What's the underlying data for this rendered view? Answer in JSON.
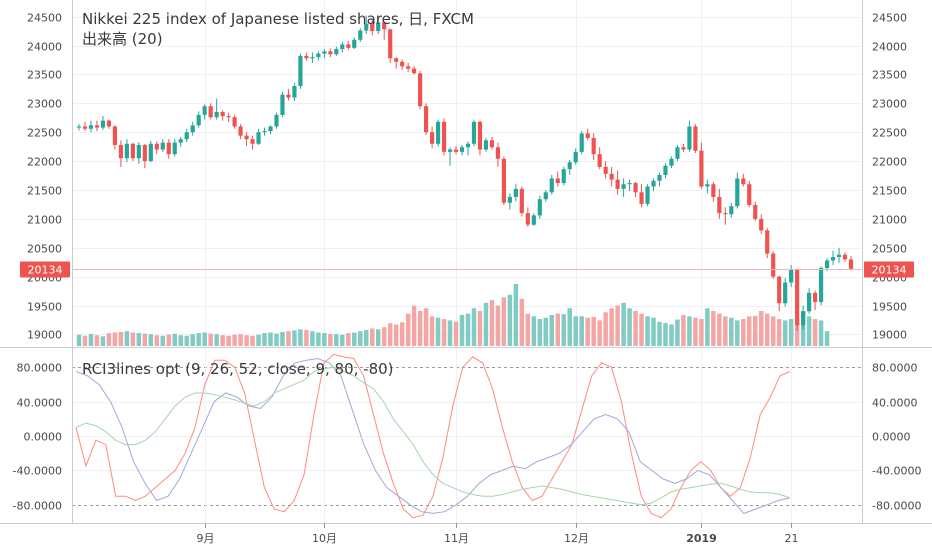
{
  "colors": {
    "up": "#26a69a",
    "down": "#ef5350",
    "up_volume": "#80cbc4",
    "down_volume": "#f4a6a4",
    "rci_short": "#ff8a80",
    "rci_mid": "#9fa8da",
    "rci_long": "#a5d6a7",
    "grid": "#eef0f3",
    "price_line": "#f6b6b4",
    "price_tag": "#ef5350"
  },
  "legend": {
    "title": "Nikkei 225 index of Japanese listed shares, 日, FXCM",
    "volume_label": "出来高 (20)",
    "indicator_label": "RCI3lines opt (9, 26, 52, close, 9, 80, -80)"
  },
  "current_price_label": "20134",
  "chart_data": [
    {
      "type": "candlestick",
      "title": "Nikkei 225 index of Japanese listed shares, 日, FXCM",
      "y_ticks": [
        "24500",
        "24000",
        "23500",
        "23000",
        "22500",
        "22000",
        "21500",
        "21000",
        "20500",
        "20000",
        "19500",
        "19000"
      ],
      "ylim": [
        18800,
        24650
      ],
      "last_price": 20134,
      "x_ticks": [
        "9月",
        "10月",
        "11月",
        "12月",
        "2019",
        "21"
      ],
      "ohlc": [
        [
          22580,
          22640,
          22530,
          22600
        ],
        [
          22600,
          22680,
          22520,
          22560
        ],
        [
          22560,
          22700,
          22500,
          22620
        ],
        [
          22620,
          22700,
          22520,
          22580
        ],
        [
          22580,
          22780,
          22540,
          22700
        ],
        [
          22700,
          22720,
          22560,
          22600
        ],
        [
          22600,
          22620,
          22200,
          22280
        ],
        [
          22280,
          22360,
          21900,
          22050
        ],
        [
          22050,
          22380,
          21980,
          22300
        ],
        [
          22300,
          22320,
          22000,
          22050
        ],
        [
          22050,
          22330,
          21950,
          22280
        ],
        [
          22280,
          22300,
          21880,
          22000
        ],
        [
          22000,
          22350,
          21980,
          22300
        ],
        [
          22300,
          22340,
          22120,
          22200
        ],
        [
          22200,
          22380,
          22160,
          22320
        ],
        [
          22320,
          22380,
          22040,
          22120
        ],
        [
          22120,
          22380,
          22080,
          22320
        ],
        [
          22320,
          22420,
          22250,
          22380
        ],
        [
          22380,
          22560,
          22330,
          22500
        ],
        [
          22500,
          22680,
          22440,
          22620
        ],
        [
          22620,
          22860,
          22580,
          22800
        ],
        [
          22800,
          22980,
          22720,
          22950
        ],
        [
          22950,
          23000,
          22720,
          22760
        ],
        [
          22760,
          23080,
          22720,
          22850
        ],
        [
          22850,
          22880,
          22700,
          22780
        ],
        [
          22780,
          22840,
          22680,
          22760
        ],
        [
          22760,
          22800,
          22560,
          22600
        ],
        [
          22600,
          22640,
          22380,
          22440
        ],
        [
          22440,
          22500,
          22260,
          22380
        ],
        [
          22380,
          22440,
          22200,
          22300
        ],
        [
          22300,
          22560,
          22280,
          22500
        ],
        [
          22500,
          22580,
          22440,
          22520
        ],
        [
          22520,
          22620,
          22460,
          22600
        ],
        [
          22600,
          22840,
          22560,
          22800
        ],
        [
          22800,
          23200,
          22760,
          23150
        ],
        [
          23150,
          23250,
          23050,
          23100
        ],
        [
          23100,
          23350,
          23040,
          23300
        ],
        [
          23300,
          23860,
          23250,
          23820
        ],
        [
          23820,
          23880,
          23740,
          23780
        ],
        [
          23780,
          23880,
          23700,
          23800
        ],
        [
          23800,
          23900,
          23740,
          23860
        ],
        [
          23860,
          23940,
          23780,
          23900
        ],
        [
          23900,
          23950,
          23800,
          23850
        ],
        [
          23850,
          23980,
          23820,
          23940
        ],
        [
          23940,
          24060,
          23880,
          24020
        ],
        [
          24020,
          24080,
          23920,
          23960
        ],
        [
          23960,
          24140,
          23940,
          24100
        ],
        [
          24100,
          24300,
          24060,
          24260
        ],
        [
          24260,
          24520,
          24200,
          24380
        ],
        [
          24380,
          24460,
          24180,
          24250
        ],
        [
          24250,
          24480,
          24200,
          24400
        ],
        [
          24400,
          24420,
          24100,
          24280
        ],
        [
          24280,
          24300,
          23700,
          23780
        ],
        [
          23780,
          23800,
          23600,
          23720
        ],
        [
          23720,
          23760,
          23580,
          23640
        ],
        [
          23640,
          23700,
          23540,
          23600
        ],
        [
          23600,
          23640,
          23500,
          23520
        ],
        [
          23520,
          23560,
          22900,
          22950
        ],
        [
          22950,
          23000,
          22450,
          22500
        ],
        [
          22500,
          22600,
          22220,
          22300
        ],
        [
          22300,
          22720,
          22250,
          22680
        ],
        [
          22680,
          22740,
          22100,
          22160
        ],
        [
          22160,
          22240,
          21920,
          22200
        ],
        [
          22200,
          22260,
          22120,
          22160
        ],
        [
          22160,
          22280,
          22100,
          22240
        ],
        [
          22240,
          22340,
          22100,
          22300
        ],
        [
          22300,
          22720,
          22260,
          22680
        ],
        [
          22680,
          22700,
          22100,
          22200
        ],
        [
          22200,
          22400,
          22160,
          22360
        ],
        [
          22360,
          22420,
          22200,
          22240
        ],
        [
          22240,
          22320,
          21900,
          22040
        ],
        [
          22040,
          22080,
          21240,
          21280
        ],
        [
          21280,
          21440,
          21160,
          21380
        ],
        [
          21380,
          21600,
          21300,
          21520
        ],
        [
          21520,
          21560,
          21040,
          21100
        ],
        [
          21100,
          21200,
          20860,
          20900
        ],
        [
          20900,
          21100,
          20880,
          21060
        ],
        [
          21060,
          21400,
          21000,
          21340
        ],
        [
          21340,
          21500,
          21300,
          21460
        ],
        [
          21460,
          21760,
          21420,
          21700
        ],
        [
          21700,
          21820,
          21560,
          21620
        ],
        [
          21620,
          21900,
          21580,
          21860
        ],
        [
          21860,
          22020,
          21760,
          21980
        ],
        [
          21980,
          22220,
          21940,
          22160
        ],
        [
          22160,
          22520,
          22120,
          22480
        ],
        [
          22480,
          22560,
          22360,
          22400
        ],
        [
          22400,
          22480,
          22020,
          22120
        ],
        [
          22120,
          22240,
          21860,
          21900
        ],
        [
          21900,
          22000,
          21700,
          21780
        ],
        [
          21780,
          21900,
          21560,
          21680
        ],
        [
          21680,
          21840,
          21420,
          21520
        ],
        [
          21520,
          21700,
          21380,
          21600
        ],
        [
          21600,
          21680,
          21480,
          21620
        ],
        [
          21620,
          21640,
          21380,
          21460
        ],
        [
          21460,
          21600,
          21200,
          21260
        ],
        [
          21260,
          21600,
          21220,
          21560
        ],
        [
          21560,
          21700,
          21480,
          21660
        ],
        [
          21660,
          21800,
          21560,
          21760
        ],
        [
          21760,
          21960,
          21700,
          21920
        ],
        [
          21920,
          22080,
          21880,
          22040
        ],
        [
          22040,
          22280,
          22000,
          22240
        ],
        [
          22240,
          22300,
          22160,
          22200
        ],
        [
          22200,
          22700,
          22160,
          22600
        ],
        [
          22600,
          22640,
          22140,
          22180
        ],
        [
          22180,
          22320,
          21520,
          21560
        ],
        [
          21560,
          21680,
          21440,
          21600
        ],
        [
          21600,
          21640,
          21300,
          21380
        ],
        [
          21380,
          21520,
          21000,
          21100
        ],
        [
          21100,
          21200,
          20900,
          21080
        ],
        [
          21080,
          21280,
          21020,
          21220
        ],
        [
          21220,
          21800,
          21180,
          21700
        ],
        [
          21700,
          21780,
          21560,
          21600
        ],
        [
          21600,
          21660,
          21200,
          21240
        ],
        [
          21240,
          21300,
          20960,
          21000
        ],
        [
          21000,
          21080,
          20740,
          20800
        ],
        [
          20800,
          20840,
          20320,
          20400
        ],
        [
          20400,
          20440,
          19960,
          20000
        ],
        [
          20000,
          20020,
          19400,
          19540
        ],
        [
          19540,
          19980,
          19480,
          19900
        ],
        [
          19900,
          20200,
          19820,
          20120
        ],
        [
          20120,
          20140,
          19060,
          19160
        ],
        [
          19160,
          19500,
          19080,
          19400
        ],
        [
          19400,
          19800,
          19360,
          19720
        ],
        [
          19720,
          19760,
          19420,
          19560
        ],
        [
          19560,
          20180,
          19500,
          20150
        ],
        [
          20150,
          20320,
          20100,
          20280
        ],
        [
          20280,
          20450,
          20200,
          20340
        ],
        [
          20340,
          20500,
          20240,
          20380
        ],
        [
          20380,
          20420,
          20260,
          20300
        ],
        [
          20300,
          20360,
          20120,
          20134
        ]
      ]
    },
    {
      "type": "bar",
      "title": "出来高 (20)",
      "values": [
        42,
        38,
        45,
        40,
        36,
        48,
        50,
        52,
        55,
        50,
        48,
        46,
        44,
        40,
        38,
        42,
        45,
        40,
        38,
        44,
        48,
        50,
        46,
        44,
        40,
        38,
        42,
        44,
        40,
        38,
        42,
        48,
        50,
        46,
        52,
        55,
        58,
        62,
        60,
        55,
        50,
        48,
        45,
        44,
        42,
        48,
        50,
        55,
        60,
        65,
        62,
        70,
        85,
        80,
        88,
        120,
        150,
        130,
        140,
        110,
        105,
        100,
        95,
        90,
        115,
        120,
        140,
        130,
        160,
        170,
        150,
        180,
        190,
        230,
        175,
        120,
        110,
        100,
        105,
        115,
        120,
        118,
        140,
        110,
        110,
        105,
        108,
        95,
        125,
        140,
        150,
        160,
        140,
        130,
        120,
        110,
        105,
        90,
        85,
        80,
        98,
        115,
        110,
        105,
        100,
        140,
        130,
        120,
        110,
        105,
        95,
        100,
        110,
        112,
        130,
        120,
        110,
        100,
        95,
        100,
        105,
        130,
        110,
        100,
        95,
        55
      ]
    },
    {
      "type": "line",
      "title": "RCI3lines opt (9, 26, 52, close, 9, 80, -80)",
      "y_ticks": [
        "80.0000",
        "40.0000",
        "0.0000",
        "-40.0000",
        "-80.0000"
      ],
      "ylim": [
        -100,
        100
      ],
      "levels": [
        80,
        -80
      ],
      "series": [
        {
          "values": [
            10,
            -35,
            -5,
            -10,
            -70,
            -70,
            -75,
            -70,
            -60,
            -50,
            -40,
            -20,
            10,
            60,
            88,
            88,
            80,
            50,
            -5,
            -60,
            -85,
            -88,
            -75,
            -45,
            25,
            85,
            95,
            92,
            90,
            70,
            25,
            -20,
            -55,
            -85,
            -95,
            -92,
            -70,
            -25,
            35,
            80,
            92,
            85,
            55,
            10,
            -30,
            -60,
            -75,
            -70,
            -50,
            -30,
            -10,
            30,
            70,
            85,
            80,
            40,
            -20,
            -70,
            -90,
            -95,
            -85,
            -60,
            -40,
            -30,
            -40,
            -60,
            -70,
            -60,
            -25,
            25,
            45,
            70,
            75
          ]
        },
        {
          "values": [
            75,
            70,
            60,
            40,
            10,
            -30,
            -55,
            -75,
            -70,
            -50,
            -20,
            10,
            40,
            50,
            45,
            35,
            32,
            45,
            70,
            85,
            88,
            90,
            85,
            70,
            30,
            -10,
            -40,
            -60,
            -70,
            -80,
            -88,
            -90,
            -88,
            -80,
            -70,
            -55,
            -45,
            -40,
            -35,
            -38,
            -30,
            -25,
            -20,
            -10,
            5,
            20,
            25,
            20,
            5,
            -30,
            -40,
            -50,
            -55,
            -50,
            -40,
            -45,
            -60,
            -75,
            -90,
            -85,
            -80,
            -75,
            -72
          ]
        },
        {
          "values": [
            10,
            15,
            12,
            5,
            -5,
            -10,
            -10,
            -5,
            5,
            20,
            35,
            45,
            50,
            50,
            48,
            45,
            42,
            38,
            35,
            40,
            50,
            55,
            60,
            65,
            75,
            78,
            80,
            75,
            70,
            62,
            55,
            40,
            20,
            5,
            -10,
            -30,
            -45,
            -55,
            -60,
            -65,
            -68,
            -70,
            -70,
            -68,
            -65,
            -62,
            -60,
            -58,
            -60,
            -62,
            -65,
            -68,
            -70,
            -72,
            -74,
            -76,
            -78,
            -80,
            -78,
            -72,
            -65,
            -62,
            -60,
            -58,
            -56,
            -55,
            -58,
            -62,
            -65,
            -66,
            -66,
            -68,
            -72
          ]
        }
      ]
    }
  ]
}
